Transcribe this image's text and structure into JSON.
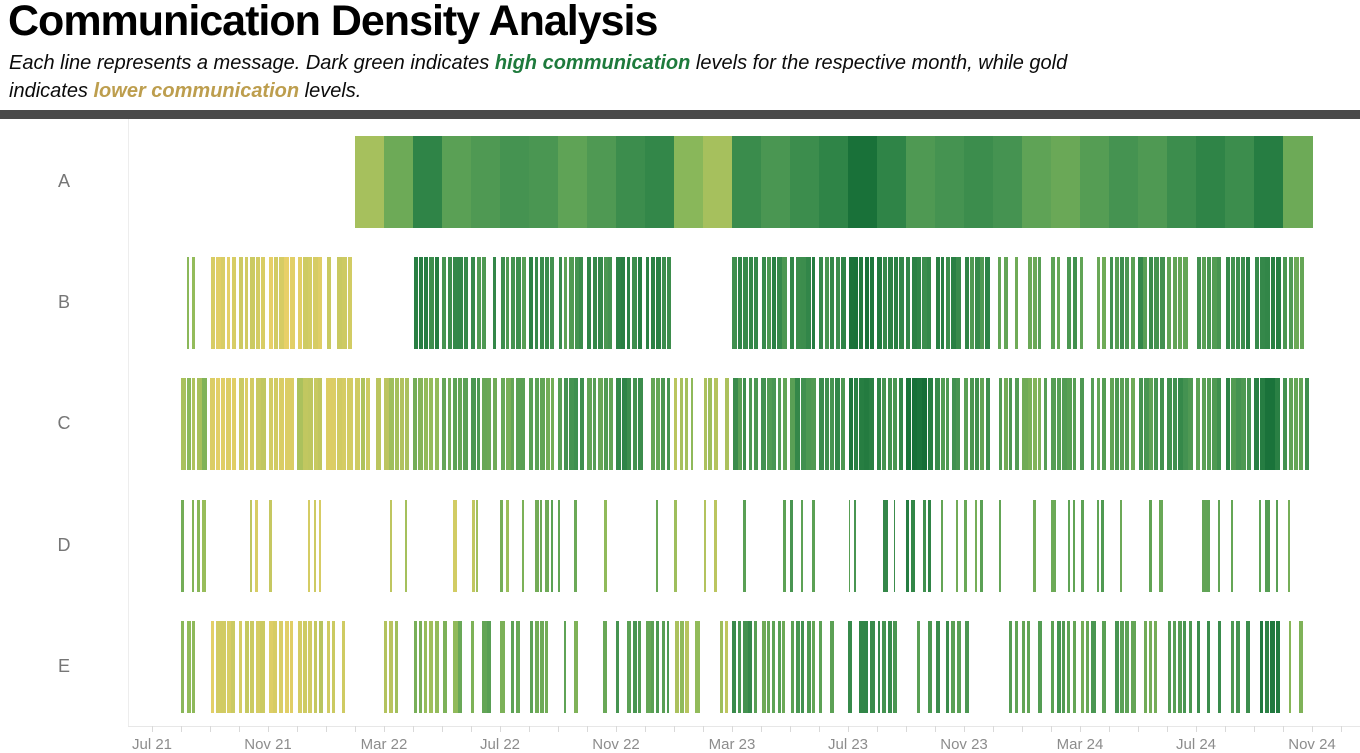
{
  "header": {
    "title": "Communication Density Analysis",
    "subtitle": {
      "line1_pre": "Each line represents a message. Dark green indicates ",
      "highlight_green": "high communication",
      "line1_post": " levels for the respective month, while gold",
      "line2_pre": "indicates ",
      "highlight_gold": "lower communication",
      "line2_post": " levels.",
      "green_color": "#1E7A3C",
      "gold_color": "#BD9E4E"
    },
    "divider_color": "#4A4A4A"
  },
  "chart_data": {
    "type": "barcode_timeline",
    "title": "Communication Density Analysis",
    "legend_note": "Each vertical line is a message; color encodes monthly communication level from gold (low) to dark green (high)",
    "month_index_zero": "2021-07",
    "x_axis": {
      "minor_tick_unit": "month",
      "tick_color": "#d9d9d9",
      "label_color": "#8C8C8C",
      "ticks": [
        {
          "label": "Jul 21",
          "month": 0
        },
        {
          "label": "Nov 21",
          "month": 4
        },
        {
          "label": "Mar 22",
          "month": 8
        },
        {
          "label": "Jul 22",
          "month": 12
        },
        {
          "label": "Nov 22",
          "month": 16
        },
        {
          "label": "Mar 23",
          "month": 20
        },
        {
          "label": "Jul 23",
          "month": 24
        },
        {
          "label": "Nov 23",
          "month": 28
        },
        {
          "label": "Mar 24",
          "month": 32
        },
        {
          "label": "Jul 24",
          "month": 36
        },
        {
          "label": "Nov 24",
          "month": 40
        }
      ]
    },
    "row_label_color": "#767676",
    "palette": {
      "low_meaning": "lower communication (gold)",
      "high_meaning": "high communication (dark green)",
      "stops": [
        [
          0.0,
          "#F0D169"
        ],
        [
          0.2,
          "#CFCB63"
        ],
        [
          0.3,
          "#B5C35E"
        ],
        [
          0.4,
          "#97BD5B"
        ],
        [
          0.5,
          "#7BB058"
        ],
        [
          0.6,
          "#5FA356"
        ],
        [
          0.7,
          "#459351"
        ],
        [
          0.8,
          "#2F8447"
        ],
        [
          0.9,
          "#1D763C"
        ],
        [
          1.0,
          "#146C36"
        ]
      ]
    },
    "rows": [
      {
        "label": "A",
        "start_index": 7,
        "solid": true,
        "levels": [
          0.35,
          0.55,
          0.8,
          0.62,
          0.66,
          0.7,
          0.68,
          0.6,
          0.66,
          0.74,
          0.78,
          0.45,
          0.35,
          0.75,
          0.68,
          0.74,
          0.8,
          0.95,
          0.8,
          0.66,
          0.7,
          0.74,
          0.7,
          0.6,
          0.56,
          0.64,
          0.7,
          0.66,
          0.74,
          0.8,
          0.74,
          0.85,
          0.55
        ]
      },
      {
        "label": "B",
        "start_index": 1,
        "levels": [
          0.45,
          0.12,
          0.15,
          0.12,
          0.15,
          0.18,
          0,
          0,
          0.8,
          0.75,
          0.7,
          0.7,
          0.75,
          0.68,
          0.74,
          0.8,
          0.78,
          0,
          0,
          0.8,
          0.75,
          0.8,
          0.75,
          0.95,
          0.82,
          0.75,
          0.8,
          0.74,
          0.6,
          0.58,
          0.64,
          0.6,
          0.66,
          0.7,
          0.64,
          0.7,
          0.76,
          0.84,
          0.6
        ],
        "density": [
          0.55,
          0.9,
          0.85,
          0.88,
          0.82,
          0.7,
          0,
          0,
          0.85,
          0.8,
          0.75,
          0.8,
          0.85,
          0.7,
          0.8,
          0.85,
          0.75,
          0,
          0,
          0.85,
          0.85,
          0.9,
          0.85,
          0.95,
          0.9,
          0.85,
          0.9,
          0.85,
          0.6,
          0.6,
          0.7,
          0.65,
          0.7,
          0.75,
          0.7,
          0.75,
          0.8,
          0.8,
          0.7
        ]
      },
      {
        "label": "C",
        "start_index": 1,
        "levels": [
          0.4,
          0.15,
          0.2,
          0.15,
          0.3,
          0.15,
          0.25,
          0.3,
          0.45,
          0.55,
          0.6,
          0.55,
          0.6,
          0.65,
          0.6,
          0.75,
          0.65,
          0.35,
          0.3,
          0.7,
          0.65,
          0.7,
          0.75,
          0.9,
          0.75,
          0.9,
          0.7,
          0.65,
          0.6,
          0.55,
          0.6,
          0.65,
          0.6,
          0.65,
          0.7,
          0.65,
          0.72,
          0.9,
          0.65
        ],
        "density": [
          0.8,
          0.85,
          0.8,
          0.85,
          0.95,
          0.9,
          0.75,
          0.8,
          0.8,
          0.75,
          0.8,
          0.85,
          0.8,
          0.75,
          0.8,
          0.95,
          0.75,
          0.5,
          0.55,
          0.8,
          0.75,
          0.8,
          0.85,
          0.9,
          0.8,
          0.9,
          0.75,
          0.7,
          0.65,
          0.6,
          0.7,
          0.75,
          0.7,
          0.75,
          0.8,
          0.75,
          0.8,
          0.85,
          0.7
        ]
      },
      {
        "label": "D",
        "start_index": 1,
        "levels": [
          0.45,
          0,
          0.2,
          0.18,
          0.22,
          0.25,
          0,
          0.3,
          0.35,
          0.2,
          0.3,
          0.45,
          0.55,
          0.6,
          0.5,
          0.65,
          0.55,
          0.3,
          0.35,
          0.6,
          0.55,
          0.65,
          0.6,
          0.7,
          0.75,
          0.8,
          0.6,
          0.55,
          0.6,
          0.55,
          0.6,
          0.65,
          0.55,
          0.6,
          0.65,
          0.6,
          0.55,
          0.65,
          0.55
        ],
        "density": [
          0.5,
          0,
          0.25,
          0.3,
          0.25,
          0.2,
          0,
          0.15,
          0.2,
          0.25,
          0.3,
          0.35,
          0.4,
          0.35,
          0.3,
          0.35,
          0.3,
          0.25,
          0.3,
          0.3,
          0.35,
          0.3,
          0.08,
          0.1,
          0.3,
          0.4,
          0.25,
          0.3,
          0.25,
          0.3,
          0.25,
          0.3,
          0.25,
          0.3,
          0.25,
          0.3,
          0.25,
          0.3,
          0.2
        ]
      },
      {
        "label": "E",
        "start_index": 1,
        "levels": [
          0.45,
          0.15,
          0.2,
          0.15,
          0.25,
          0.2,
          0.15,
          0.35,
          0.45,
          0.5,
          0.55,
          0.55,
          0.6,
          0.55,
          0.6,
          0.65,
          0.6,
          0.35,
          0.3,
          0.7,
          0.6,
          0.65,
          0.6,
          0.8,
          0.7,
          0.65,
          0.7,
          0.65,
          0.6,
          0.6,
          0.65,
          0.6,
          0.65,
          0.6,
          0.65,
          0.7,
          0.7,
          0.85,
          0.5
        ],
        "density": [
          0.6,
          0.8,
          0.7,
          0.75,
          0.7,
          0.6,
          0.15,
          0.45,
          0.55,
          0.6,
          0.55,
          0.6,
          0.55,
          0.5,
          0.55,
          0.6,
          0.5,
          0.55,
          0.4,
          0.55,
          0.55,
          0.6,
          0.55,
          0.6,
          0.55,
          0.55,
          0.6,
          0.55,
          0.5,
          0.55,
          0.5,
          0.55,
          0.55,
          0.5,
          0.55,
          0.55,
          0.6,
          0.7,
          0.45
        ]
      }
    ]
  }
}
